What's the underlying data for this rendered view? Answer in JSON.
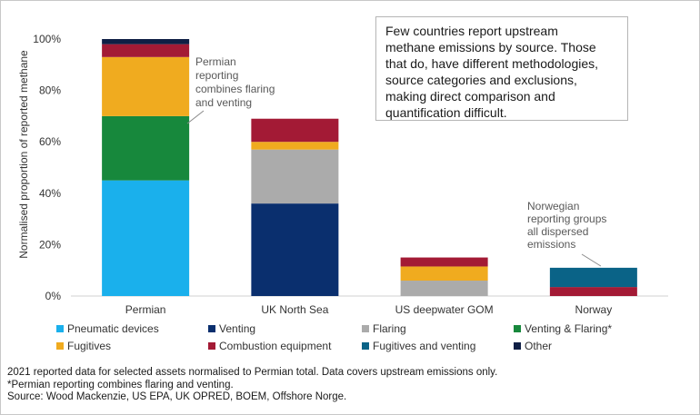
{
  "chart_data": {
    "type": "bar",
    "stacked": true,
    "ylabel": "Normalised proportion of reported methane",
    "ylim": [
      0,
      100
    ],
    "yticks": [
      "0%",
      "20%",
      "40%",
      "60%",
      "80%",
      "100%"
    ],
    "categories": [
      "Permian",
      "UK North Sea",
      "US deepwater GOM",
      "Norway"
    ],
    "series": [
      {
        "name": "Pneumatic devices",
        "color": "#1ab0ec",
        "values": [
          45,
          0,
          0,
          0
        ]
      },
      {
        "name": "Venting",
        "color": "#0a2f6e",
        "values": [
          0,
          36,
          0,
          0
        ]
      },
      {
        "name": "Flaring",
        "color": "#ababab",
        "values": [
          0,
          21,
          6,
          0
        ]
      },
      {
        "name": "Venting & Flaring*",
        "color": "#17883c",
        "values": [
          25,
          0,
          0,
          0
        ]
      },
      {
        "name": "Fugitives",
        "color": "#f0ab1f",
        "values": [
          23,
          3,
          5.5,
          0
        ]
      },
      {
        "name": "Combustion equipment",
        "color": "#a31a35",
        "values": [
          5,
          9,
          3.5,
          3.5
        ]
      },
      {
        "name": "Fugitives and venting",
        "color": "#0a6387",
        "values": [
          0,
          0,
          0,
          7.5
        ]
      },
      {
        "name": "Other",
        "color": "#0f1f45",
        "values": [
          2,
          0,
          0,
          0
        ]
      }
    ],
    "annotations": {
      "permian": [
        "Permian",
        "reporting",
        "combines flaring",
        "and venting"
      ],
      "norway": [
        "Norwegian",
        "reporting groups",
        "all dispersed",
        "emissions"
      ]
    }
  },
  "note": [
    "Few countries report upstream",
    "methane emissions by source. Those",
    "that do, have different methodologies,",
    "source categories and exclusions,",
    "making direct comparison and",
    "quantification difficult."
  ],
  "footnotes": [
    "2021 reported data for selected assets normalised to Permian total.  Data covers upstream emissions only.",
    "*Permian reporting combines flaring and venting.",
    "Source: Wood Mackenzie, US EPA, UK OPRED, BOEM, Offshore Norge."
  ]
}
